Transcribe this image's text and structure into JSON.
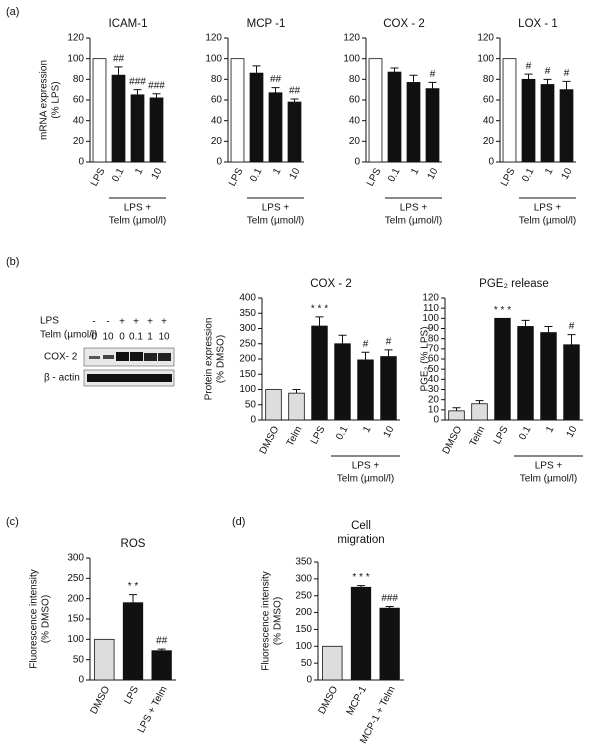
{
  "panel_labels": [
    "(a)",
    "(b)",
    "(c)",
    "(d)"
  ],
  "blot": {
    "row_labels": [
      "LPS",
      "Telm (µmol/l)"
    ],
    "lps_signs": [
      "-",
      "-",
      "+",
      "+",
      "+",
      "+"
    ],
    "telm_doses": [
      "0",
      "10",
      "0",
      "0.1",
      "1",
      "10"
    ],
    "bands": [
      "COX- 2",
      "β - actin"
    ]
  },
  "chart_data": [
    {
      "type": "bar",
      "title": "ICAM-1",
      "y_label": [
        "mRNA expression",
        "(% LPS)"
      ],
      "categories": [
        "LPS",
        "0.1",
        "1",
        "10"
      ],
      "series": [
        {
          "values": [
            100,
            84,
            65,
            62
          ],
          "errors": [
            null,
            8,
            5,
            4
          ],
          "colors": [
            "#ffffff",
            "#111111",
            "#111111",
            "#111111"
          ],
          "annotations": [
            null,
            "##",
            "###",
            "###"
          ]
        }
      ],
      "ylim": [
        0,
        120
      ],
      "yticks": [
        0,
        20,
        40,
        60,
        80,
        100,
        120
      ],
      "group_label": [
        "LPS +",
        "Telm (µmol/l)"
      ]
    },
    {
      "type": "bar",
      "title": "MCP -1",
      "categories": [
        "LPS",
        "0.1",
        "1",
        "10"
      ],
      "series": [
        {
          "values": [
            100,
            86,
            67,
            58
          ],
          "errors": [
            null,
            7,
            5,
            3
          ],
          "colors": [
            "#ffffff",
            "#111111",
            "#111111",
            "#111111"
          ],
          "annotations": [
            null,
            null,
            "##",
            "##"
          ]
        }
      ],
      "ylim": [
        0,
        120
      ],
      "yticks": [
        0,
        20,
        40,
        60,
        80,
        100,
        120
      ],
      "group_label": [
        "LPS +",
        "Telm (µmol/l)"
      ]
    },
    {
      "type": "bar",
      "title": "COX - 2",
      "categories": [
        "LPS",
        "0.1",
        "1",
        "10"
      ],
      "series": [
        {
          "values": [
            100,
            87,
            77,
            71
          ],
          "errors": [
            null,
            4,
            7,
            6
          ],
          "colors": [
            "#ffffff",
            "#111111",
            "#111111",
            "#111111"
          ],
          "annotations": [
            null,
            null,
            null,
            "#"
          ]
        }
      ],
      "ylim": [
        0,
        120
      ],
      "yticks": [
        0,
        20,
        40,
        60,
        80,
        100,
        120
      ],
      "group_label": [
        "LPS +",
        "Telm (µmol/l)"
      ]
    },
    {
      "type": "bar",
      "title": "LOX - 1",
      "categories": [
        "LPS",
        "0.1",
        "1",
        "10"
      ],
      "series": [
        {
          "values": [
            100,
            80,
            75,
            70
          ],
          "errors": [
            null,
            5,
            5,
            8
          ],
          "colors": [
            "#ffffff",
            "#111111",
            "#111111",
            "#111111"
          ],
          "annotations": [
            null,
            "#",
            "#",
            "#"
          ]
        }
      ],
      "ylim": [
        0,
        120
      ],
      "yticks": [
        0,
        20,
        40,
        60,
        80,
        100,
        120
      ],
      "group_label": [
        "LPS +",
        "Telm (µmol/l)"
      ]
    },
    {
      "type": "bar",
      "title": "COX - 2",
      "y_label": [
        "Protein expression",
        "(% DMSO)"
      ],
      "categories": [
        "DMSO",
        "Telm",
        "LPS",
        "0.1",
        "1",
        "10"
      ],
      "series": [
        {
          "values": [
            100,
            88,
            308,
            250,
            197,
            208
          ],
          "errors": [
            null,
            12,
            30,
            28,
            25,
            22
          ],
          "colors": [
            "#dddddd",
            "#dddddd",
            "#111111",
            "#111111",
            "#111111",
            "#111111"
          ],
          "annotations": [
            null,
            null,
            "* * *",
            null,
            "#",
            "#"
          ]
        }
      ],
      "ylim": [
        0,
        400
      ],
      "yticks": [
        0,
        50,
        100,
        150,
        200,
        250,
        300,
        350,
        400
      ],
      "group_label": [
        "LPS +",
        "Telm (µmol/l)"
      ]
    },
    {
      "type": "bar",
      "title": "PGE₂ release",
      "y_label": [
        "PGE₂ (% LPS)"
      ],
      "categories": [
        "DMSO",
        "Telm",
        "LPS",
        "0.1",
        "1",
        "10"
      ],
      "series": [
        {
          "values": [
            9,
            16,
            100,
            92,
            86,
            74
          ],
          "errors": [
            3,
            3,
            null,
            6,
            6,
            10
          ],
          "colors": [
            "#dddddd",
            "#dddddd",
            "#111111",
            "#111111",
            "#111111",
            "#111111"
          ],
          "annotations": [
            null,
            null,
            "* * *",
            null,
            null,
            "#"
          ]
        }
      ],
      "ylim": [
        0,
        120
      ],
      "yticks": [
        0,
        10,
        20,
        30,
        40,
        50,
        60,
        70,
        80,
        90,
        100,
        110,
        120
      ],
      "group_label": [
        "LPS +",
        "Telm (µmol/l)"
      ]
    },
    {
      "type": "bar",
      "title": "ROS",
      "y_label": [
        "Fluorescence intensity",
        "(% DMSO)"
      ],
      "categories": [
        "DMSO",
        "LPS",
        "LPS + Telm"
      ],
      "series": [
        {
          "values": [
            100,
            190,
            72
          ],
          "errors": [
            null,
            20,
            4
          ],
          "colors": [
            "#dddddd",
            "#111111",
            "#111111"
          ],
          "annotations": [
            null,
            "* *",
            "##"
          ]
        }
      ],
      "ylim": [
        0,
        300
      ],
      "yticks": [
        0,
        50,
        100,
        150,
        200,
        250,
        300
      ]
    },
    {
      "type": "bar",
      "title": [
        "Cell",
        "migration"
      ],
      "y_label": [
        "Fluorescence intensity",
        "(% DMSO)"
      ],
      "categories": [
        "DMSO",
        "MCP-1",
        "MCP-1 + Telm"
      ],
      "series": [
        {
          "values": [
            100,
            275,
            213
          ],
          "errors": [
            null,
            5,
            5
          ],
          "colors": [
            "#dddddd",
            "#111111",
            "#111111"
          ],
          "annotations": [
            null,
            "* * *",
            "###"
          ]
        }
      ],
      "ylim": [
        0,
        350
      ],
      "yticks": [
        0,
        50,
        100,
        150,
        200,
        250,
        300,
        350
      ]
    }
  ]
}
